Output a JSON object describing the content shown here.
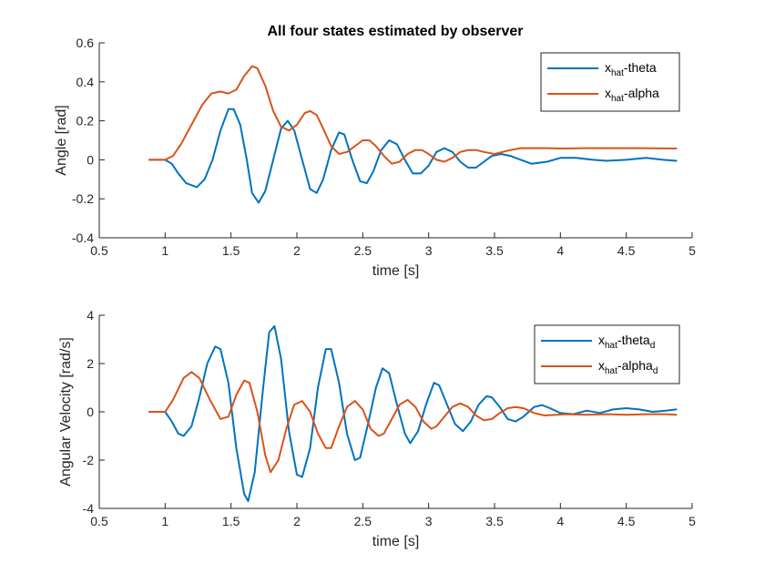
{
  "figure": {
    "background": "#ffffff",
    "axes_color": "#262626",
    "series_colors": [
      "#0072BD",
      "#D95319"
    ]
  },
  "chart_data": [
    {
      "type": "line",
      "title": "All four states estimated by observer",
      "xlabel": "time [s]",
      "ylabel": "Angle [rad]",
      "xlim": [
        0.5,
        5
      ],
      "ylim": [
        -0.4,
        0.6
      ],
      "xticks": [
        "0.5",
        "1",
        "1.5",
        "2",
        "2.5",
        "3",
        "3.5",
        "4",
        "4.5",
        "5"
      ],
      "yticks": [
        "-0.4",
        "-0.2",
        "0",
        "0.2",
        "0.4",
        "0.6"
      ],
      "legend_position": "top-right",
      "grid": false,
      "series": [
        {
          "name": "x_hat-theta",
          "legend_main": "x",
          "legend_sub": "hat",
          "legend_rest": "-theta",
          "legend_sub2": "",
          "color": "#0072BD",
          "points": [
            [
              0.88,
              0
            ],
            [
              1.0,
              0
            ],
            [
              1.05,
              -0.02
            ],
            [
              1.1,
              -0.07
            ],
            [
              1.16,
              -0.12
            ],
            [
              1.24,
              -0.14
            ],
            [
              1.3,
              -0.1
            ],
            [
              1.36,
              0.0
            ],
            [
              1.42,
              0.15
            ],
            [
              1.48,
              0.26
            ],
            [
              1.52,
              0.26
            ],
            [
              1.57,
              0.18
            ],
            [
              1.62,
              0.0
            ],
            [
              1.66,
              -0.17
            ],
            [
              1.71,
              -0.22
            ],
            [
              1.76,
              -0.16
            ],
            [
              1.82,
              0.0
            ],
            [
              1.88,
              0.16
            ],
            [
              1.93,
              0.2
            ],
            [
              1.98,
              0.15
            ],
            [
              2.04,
              0.0
            ],
            [
              2.1,
              -0.15
            ],
            [
              2.15,
              -0.17
            ],
            [
              2.2,
              -0.1
            ],
            [
              2.26,
              0.05
            ],
            [
              2.32,
              0.14
            ],
            [
              2.36,
              0.13
            ],
            [
              2.42,
              0.0
            ],
            [
              2.48,
              -0.11
            ],
            [
              2.53,
              -0.12
            ],
            [
              2.58,
              -0.06
            ],
            [
              2.64,
              0.05
            ],
            [
              2.7,
              0.1
            ],
            [
              2.76,
              0.08
            ],
            [
              2.82,
              0.0
            ],
            [
              2.88,
              -0.07
            ],
            [
              2.94,
              -0.07
            ],
            [
              3.0,
              -0.03
            ],
            [
              3.06,
              0.04
            ],
            [
              3.12,
              0.06
            ],
            [
              3.18,
              0.04
            ],
            [
              3.24,
              -0.01
            ],
            [
              3.3,
              -0.04
            ],
            [
              3.36,
              -0.04
            ],
            [
              3.42,
              -0.01
            ],
            [
              3.48,
              0.02
            ],
            [
              3.55,
              0.03
            ],
            [
              3.62,
              0.02
            ],
            [
              3.7,
              0.0
            ],
            [
              3.78,
              -0.02
            ],
            [
              3.9,
              -0.01
            ],
            [
              4.0,
              0.01
            ],
            [
              4.12,
              0.01
            ],
            [
              4.25,
              0.0
            ],
            [
              4.35,
              -0.005
            ],
            [
              4.5,
              0.0
            ],
            [
              4.65,
              0.01
            ],
            [
              4.78,
              0.0
            ],
            [
              4.88,
              -0.005
            ]
          ]
        },
        {
          "name": "x_hat-alpha",
          "legend_main": "x",
          "legend_sub": "hat",
          "legend_rest": "-alpha",
          "legend_sub2": "",
          "color": "#D95319",
          "points": [
            [
              0.88,
              0
            ],
            [
              1.0,
              0
            ],
            [
              1.06,
              0.02
            ],
            [
              1.12,
              0.08
            ],
            [
              1.2,
              0.18
            ],
            [
              1.28,
              0.28
            ],
            [
              1.35,
              0.34
            ],
            [
              1.42,
              0.35
            ],
            [
              1.48,
              0.34
            ],
            [
              1.54,
              0.36
            ],
            [
              1.6,
              0.43
            ],
            [
              1.66,
              0.48
            ],
            [
              1.7,
              0.47
            ],
            [
              1.76,
              0.38
            ],
            [
              1.82,
              0.25
            ],
            [
              1.88,
              0.17
            ],
            [
              1.94,
              0.15
            ],
            [
              2.0,
              0.18
            ],
            [
              2.06,
              0.24
            ],
            [
              2.1,
              0.25
            ],
            [
              2.15,
              0.23
            ],
            [
              2.2,
              0.16
            ],
            [
              2.26,
              0.07
            ],
            [
              2.32,
              0.03
            ],
            [
              2.38,
              0.04
            ],
            [
              2.44,
              0.07
            ],
            [
              2.5,
              0.1
            ],
            [
              2.55,
              0.1
            ],
            [
              2.6,
              0.07
            ],
            [
              2.66,
              0.02
            ],
            [
              2.72,
              -0.02
            ],
            [
              2.78,
              -0.01
            ],
            [
              2.84,
              0.03
            ],
            [
              2.9,
              0.05
            ],
            [
              2.95,
              0.05
            ],
            [
              3.0,
              0.03
            ],
            [
              3.06,
              0.0
            ],
            [
              3.12,
              -0.01
            ],
            [
              3.18,
              0.01
            ],
            [
              3.24,
              0.04
            ],
            [
              3.3,
              0.05
            ],
            [
              3.36,
              0.05
            ],
            [
              3.42,
              0.04
            ],
            [
              3.5,
              0.03
            ],
            [
              3.56,
              0.04
            ],
            [
              3.62,
              0.05
            ],
            [
              3.7,
              0.06
            ],
            [
              3.8,
              0.06
            ],
            [
              3.9,
              0.06
            ],
            [
              4.0,
              0.058
            ],
            [
              4.2,
              0.06
            ],
            [
              4.4,
              0.06
            ],
            [
              4.6,
              0.06
            ],
            [
              4.88,
              0.058
            ]
          ]
        }
      ]
    },
    {
      "type": "line",
      "title": "",
      "xlabel": "time [s]",
      "ylabel": "Angular Velocity [rad/s]",
      "xlim": [
        0.5,
        5
      ],
      "ylim": [
        -4,
        4
      ],
      "xticks": [
        "0.5",
        "1",
        "1.5",
        "2",
        "2.5",
        "3",
        "3.5",
        "4",
        "4.5",
        "5"
      ],
      "yticks": [
        "-4",
        "-2",
        "0",
        "2",
        "4"
      ],
      "legend_position": "top-right",
      "grid": false,
      "series": [
        {
          "name": "x_hat-theta_d",
          "legend_main": "x",
          "legend_sub": "hat",
          "legend_rest": "-theta",
          "legend_sub2": "d",
          "color": "#0072BD",
          "points": [
            [
              0.88,
              0
            ],
            [
              1.0,
              0
            ],
            [
              1.05,
              -0.4
            ],
            [
              1.1,
              -0.9
            ],
            [
              1.14,
              -1.0
            ],
            [
              1.2,
              -0.6
            ],
            [
              1.26,
              0.6
            ],
            [
              1.32,
              2.0
            ],
            [
              1.38,
              2.7
            ],
            [
              1.42,
              2.6
            ],
            [
              1.48,
              1.2
            ],
            [
              1.54,
              -1.5
            ],
            [
              1.6,
              -3.4
            ],
            [
              1.63,
              -3.7
            ],
            [
              1.68,
              -2.5
            ],
            [
              1.74,
              0.8
            ],
            [
              1.79,
              3.3
            ],
            [
              1.83,
              3.55
            ],
            [
              1.88,
              2.2
            ],
            [
              1.94,
              -0.8
            ],
            [
              2.0,
              -2.6
            ],
            [
              2.04,
              -2.7
            ],
            [
              2.1,
              -1.5
            ],
            [
              2.16,
              1.0
            ],
            [
              2.22,
              2.6
            ],
            [
              2.26,
              2.6
            ],
            [
              2.32,
              1.2
            ],
            [
              2.38,
              -0.9
            ],
            [
              2.44,
              -2.0
            ],
            [
              2.48,
              -1.9
            ],
            [
              2.54,
              -0.5
            ],
            [
              2.6,
              1.0
            ],
            [
              2.65,
              1.8
            ],
            [
              2.7,
              1.6
            ],
            [
              2.76,
              0.3
            ],
            [
              2.82,
              -0.9
            ],
            [
              2.86,
              -1.3
            ],
            [
              2.92,
              -0.8
            ],
            [
              2.98,
              0.3
            ],
            [
              3.04,
              1.2
            ],
            [
              3.08,
              1.1
            ],
            [
              3.14,
              0.3
            ],
            [
              3.2,
              -0.5
            ],
            [
              3.26,
              -0.8
            ],
            [
              3.32,
              -0.4
            ],
            [
              3.38,
              0.3
            ],
            [
              3.44,
              0.65
            ],
            [
              3.48,
              0.6
            ],
            [
              3.54,
              0.2
            ],
            [
              3.6,
              -0.3
            ],
            [
              3.66,
              -0.4
            ],
            [
              3.72,
              -0.2
            ],
            [
              3.8,
              0.2
            ],
            [
              3.86,
              0.28
            ],
            [
              3.92,
              0.15
            ],
            [
              4.0,
              -0.05
            ],
            [
              4.1,
              -0.1
            ],
            [
              4.2,
              0.05
            ],
            [
              4.3,
              -0.05
            ],
            [
              4.4,
              0.1
            ],
            [
              4.5,
              0.15
            ],
            [
              4.6,
              0.1
            ],
            [
              4.7,
              0.0
            ],
            [
              4.8,
              0.05
            ],
            [
              4.88,
              0.1
            ]
          ]
        },
        {
          "name": "x_hat-alpha_d",
          "legend_main": "x",
          "legend_sub": "hat",
          "legend_rest": "-alpha",
          "legend_sub2": "d",
          "color": "#D95319",
          "points": [
            [
              0.88,
              0
            ],
            [
              1.0,
              0
            ],
            [
              1.06,
              0.5
            ],
            [
              1.14,
              1.4
            ],
            [
              1.2,
              1.65
            ],
            [
              1.26,
              1.4
            ],
            [
              1.34,
              0.5
            ],
            [
              1.42,
              -0.3
            ],
            [
              1.48,
              -0.2
            ],
            [
              1.54,
              0.7
            ],
            [
              1.6,
              1.3
            ],
            [
              1.64,
              1.2
            ],
            [
              1.7,
              0.0
            ],
            [
              1.76,
              -1.8
            ],
            [
              1.8,
              -2.5
            ],
            [
              1.86,
              -2.0
            ],
            [
              1.92,
              -0.7
            ],
            [
              1.98,
              0.3
            ],
            [
              2.04,
              0.45
            ],
            [
              2.1,
              0.0
            ],
            [
              2.16,
              -0.9
            ],
            [
              2.22,
              -1.5
            ],
            [
              2.26,
              -1.5
            ],
            [
              2.32,
              -0.6
            ],
            [
              2.38,
              0.2
            ],
            [
              2.44,
              0.45
            ],
            [
              2.5,
              0.1
            ],
            [
              2.56,
              -0.7
            ],
            [
              2.62,
              -1.0
            ],
            [
              2.66,
              -0.9
            ],
            [
              2.72,
              -0.3
            ],
            [
              2.78,
              0.3
            ],
            [
              2.84,
              0.5
            ],
            [
              2.9,
              0.2
            ],
            [
              2.96,
              -0.4
            ],
            [
              3.02,
              -0.7
            ],
            [
              3.06,
              -0.6
            ],
            [
              3.12,
              -0.2
            ],
            [
              3.18,
              0.2
            ],
            [
              3.24,
              0.35
            ],
            [
              3.3,
              0.2
            ],
            [
              3.36,
              -0.15
            ],
            [
              3.42,
              -0.35
            ],
            [
              3.48,
              -0.3
            ],
            [
              3.54,
              -0.05
            ],
            [
              3.6,
              0.15
            ],
            [
              3.66,
              0.2
            ],
            [
              3.72,
              0.15
            ],
            [
              3.8,
              -0.05
            ],
            [
              3.88,
              -0.15
            ],
            [
              3.95,
              -0.13
            ],
            [
              4.05,
              -0.1
            ],
            [
              4.2,
              -0.12
            ],
            [
              4.35,
              -0.1
            ],
            [
              4.5,
              -0.12
            ],
            [
              4.65,
              -0.1
            ],
            [
              4.8,
              -0.1
            ],
            [
              4.88,
              -0.12
            ]
          ]
        }
      ]
    }
  ]
}
